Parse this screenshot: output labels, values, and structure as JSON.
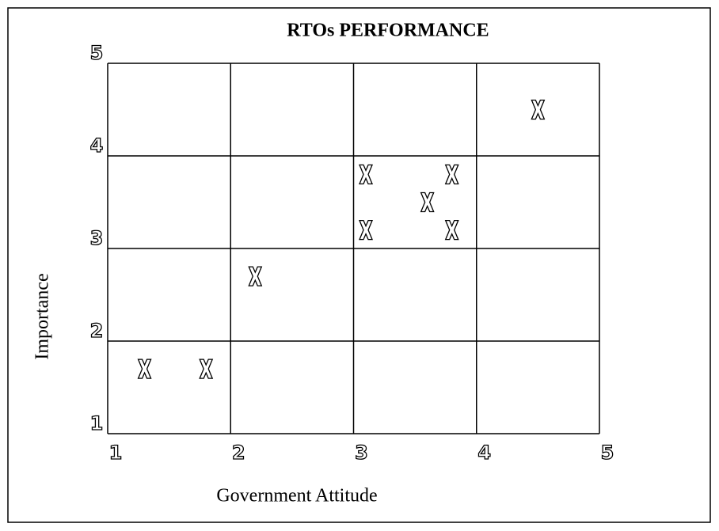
{
  "chart_data": {
    "type": "scatter",
    "title": "RTOs PERFORMANCE",
    "x_label": "Government Attitude",
    "y_label": "Importance",
    "series": [
      {
        "name": null,
        "color": "#000000",
        "x": [
          1.3,
          1.8,
          2.2,
          3.1,
          3.1,
          3.6,
          3.8,
          3.8,
          4.5
        ],
        "values": [
          1.7,
          1.7,
          2.7,
          3.8,
          3.2,
          3.5,
          3.8,
          3.2,
          4.5
        ]
      }
    ],
    "xlim": [
      1,
      5
    ],
    "ylim": [
      1,
      5
    ],
    "xticks": [
      1,
      2,
      3,
      4,
      5
    ],
    "yticks": [
      1,
      2,
      3,
      4,
      5
    ],
    "grid": true
  }
}
